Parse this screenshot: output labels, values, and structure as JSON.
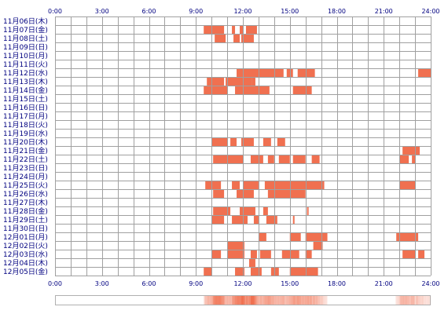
{
  "chart_data": {
    "type": "timeline",
    "x_range": [
      0,
      24
    ],
    "x_ticks": [
      "0:00",
      "3:00",
      "6:00",
      "9:00",
      "12:00",
      "15:00",
      "18:00",
      "21:00",
      "24:00"
    ],
    "activity_color": "#f07050",
    "grid_color": "#a0a0a0",
    "label_color": "#000080",
    "rows": [
      {
        "date": "11月06日(木)",
        "intervals": []
      },
      {
        "date": "11月07日(金)",
        "intervals": [
          [
            9.5,
            10.8
          ],
          [
            11.3,
            11.5
          ],
          [
            11.8,
            12.0
          ],
          [
            12.2,
            12.9
          ]
        ]
      },
      {
        "date": "11月08日(土)",
        "intervals": [
          [
            10.2,
            10.9
          ],
          [
            11.4,
            11.8
          ],
          [
            11.9,
            12.7
          ]
        ]
      },
      {
        "date": "11月09日(日)",
        "intervals": []
      },
      {
        "date": "11月10日(月)",
        "intervals": []
      },
      {
        "date": "11月11日(火)",
        "intervals": []
      },
      {
        "date": "11月12日(水)",
        "intervals": [
          [
            11.6,
            14.6
          ],
          [
            14.8,
            15.2
          ],
          [
            15.5,
            16.6
          ],
          [
            23.2,
            24.0
          ]
        ]
      },
      {
        "date": "11月13日(木)",
        "intervals": [
          [
            9.7,
            10.8
          ],
          [
            10.9,
            12.6
          ],
          [
            12.6,
            12.8
          ]
        ]
      },
      {
        "date": "11月14日(金)",
        "intervals": [
          [
            9.5,
            11.0
          ],
          [
            11.5,
            13.7
          ],
          [
            15.2,
            16.4
          ]
        ]
      },
      {
        "date": "11月15日(土)",
        "intervals": []
      },
      {
        "date": "11月16日(日)",
        "intervals": []
      },
      {
        "date": "11月17日(月)",
        "intervals": []
      },
      {
        "date": "11月18日(火)",
        "intervals": []
      },
      {
        "date": "11月19日(水)",
        "intervals": []
      },
      {
        "date": "11月20日(木)",
        "intervals": [
          [
            10.0,
            11.0
          ],
          [
            11.2,
            11.6
          ],
          [
            11.9,
            12.7
          ],
          [
            13.3,
            13.8
          ],
          [
            14.2,
            14.7
          ]
        ]
      },
      {
        "date": "11月21日(金)",
        "intervals": [
          [
            22.2,
            23.3
          ]
        ]
      },
      {
        "date": "11月22日(土)",
        "intervals": [
          [
            10.1,
            12.0
          ],
          [
            12.5,
            13.3
          ],
          [
            13.6,
            14.0
          ],
          [
            14.3,
            15.0
          ],
          [
            15.2,
            16.0
          ],
          [
            16.4,
            16.9
          ],
          [
            22.0,
            22.6
          ],
          [
            22.8,
            23.0
          ]
        ]
      },
      {
        "date": "11月23日(日)",
        "intervals": []
      },
      {
        "date": "11月24日(月)",
        "intervals": []
      },
      {
        "date": "11月25日(火)",
        "intervals": [
          [
            9.6,
            10.6
          ],
          [
            11.3,
            11.8
          ],
          [
            12.0,
            13.0
          ],
          [
            13.4,
            17.2
          ],
          [
            22.0,
            23.0
          ]
        ]
      },
      {
        "date": "11月26日(水)",
        "intervals": [
          [
            10.1,
            10.8
          ],
          [
            11.6,
            12.7
          ],
          [
            13.6,
            16.0
          ]
        ]
      },
      {
        "date": "11月27日(木)",
        "intervals": []
      },
      {
        "date": "11月28日(金)",
        "intervals": [
          [
            10.1,
            11.2
          ],
          [
            11.8,
            12.8
          ],
          [
            13.3,
            13.6
          ],
          [
            16.1,
            16.2
          ]
        ]
      },
      {
        "date": "11月29日(土)",
        "intervals": [
          [
            10.0,
            10.8
          ],
          [
            11.3,
            12.3
          ],
          [
            12.7,
            13.0
          ],
          [
            13.5,
            14.2
          ],
          [
            15.2,
            15.3
          ]
        ]
      },
      {
        "date": "11月30日(日)",
        "intervals": []
      },
      {
        "date": "12月01日(月)",
        "intervals": [
          [
            13.0,
            13.5
          ],
          [
            15.0,
            15.7
          ],
          [
            16.0,
            17.4
          ],
          [
            21.8,
            23.2
          ]
        ]
      },
      {
        "date": "12月02日(火)",
        "intervals": [
          [
            11.0,
            12.1
          ],
          [
            16.5,
            17.1
          ]
        ]
      },
      {
        "date": "12月03日(水)",
        "intervals": [
          [
            10.0,
            10.6
          ],
          [
            11.0,
            12.1
          ],
          [
            12.5,
            12.9
          ],
          [
            13.1,
            13.8
          ],
          [
            14.5,
            15.6
          ],
          [
            16.0,
            16.4
          ],
          [
            22.2,
            23.0
          ],
          [
            23.2,
            23.6
          ]
        ]
      },
      {
        "date": "12月04日(木)",
        "intervals": [
          [
            12.4,
            12.8
          ]
        ]
      },
      {
        "date": "12月05日(金)",
        "intervals": [
          [
            9.5,
            10.0
          ],
          [
            11.5,
            12.1
          ],
          [
            12.5,
            13.2
          ],
          [
            13.8,
            14.3
          ],
          [
            15.0,
            16.8
          ]
        ]
      }
    ]
  }
}
